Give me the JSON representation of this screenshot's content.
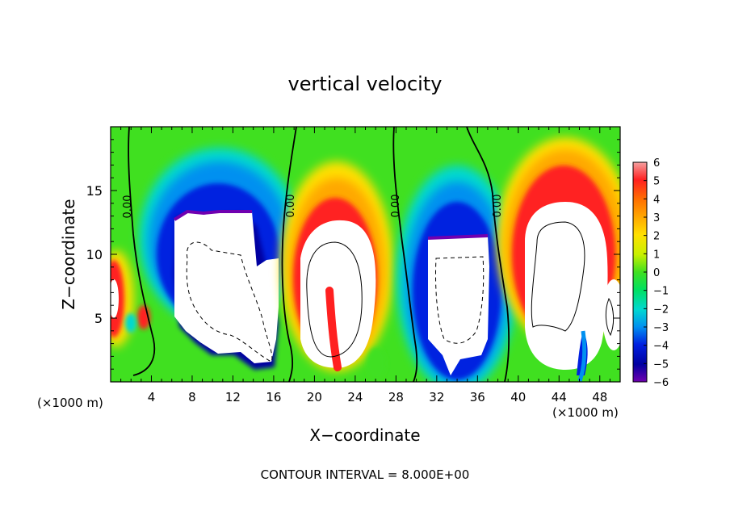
{
  "chart_data": {
    "type": "heatmap",
    "title": "vertical velocity",
    "xlabel": "X−coordinate",
    "ylabel": "Z−coordinate",
    "x_unit_left": "(×1000 m)",
    "x_unit_right": "(×1000 m)",
    "xlim": [
      0,
      50
    ],
    "ylim": [
      0,
      20
    ],
    "x_ticks": [
      4,
      8,
      12,
      16,
      20,
      24,
      28,
      32,
      36,
      40,
      44,
      48
    ],
    "x_tick_labels": [
      "4",
      "8",
      "12",
      "16",
      "20",
      "24",
      "28",
      "32",
      "36",
      "40",
      "44",
      "48"
    ],
    "y_ticks": [
      5,
      10,
      15
    ],
    "y_tick_labels": [
      "5",
      "10",
      "15"
    ],
    "zero_contour_labels": [
      "0.00",
      "0.00",
      "0.00",
      "0.00"
    ],
    "colorbar": {
      "range": [
        -6,
        6
      ],
      "tick_values": [
        6,
        5,
        4,
        3,
        2,
        1,
        0,
        -1,
        -2,
        -3,
        -4,
        -5,
        -6
      ],
      "tick_labels": [
        "6",
        "5",
        "4",
        "3",
        "2",
        "1",
        "0",
        "−1",
        "−2",
        "−3",
        "−4",
        "−5",
        "−6"
      ],
      "colors": [
        "#f5a0a0",
        "#ff2020",
        "#ff7000",
        "#ffa800",
        "#ffe000",
        "#c8f000",
        "#40e020",
        "#00e060",
        "#00d8d0",
        "#0090f0",
        "#0020e0",
        "#0000a0",
        "#7000b0"
      ]
    },
    "features": [
      {
        "sign": "positive",
        "x": 0.5,
        "z": 7
      },
      {
        "sign": "negative",
        "x": 10.5,
        "z": 9
      },
      {
        "sign": "positive",
        "x": 22,
        "z": 8
      },
      {
        "sign": "negative",
        "x": 33.5,
        "z": 7
      },
      {
        "sign": "positive",
        "x": 44,
        "z": 9
      },
      {
        "sign": "negative",
        "x": 46.5,
        "z": 2
      }
    ],
    "footer": "CONTOUR INTERVAL = 8.000E+00"
  }
}
